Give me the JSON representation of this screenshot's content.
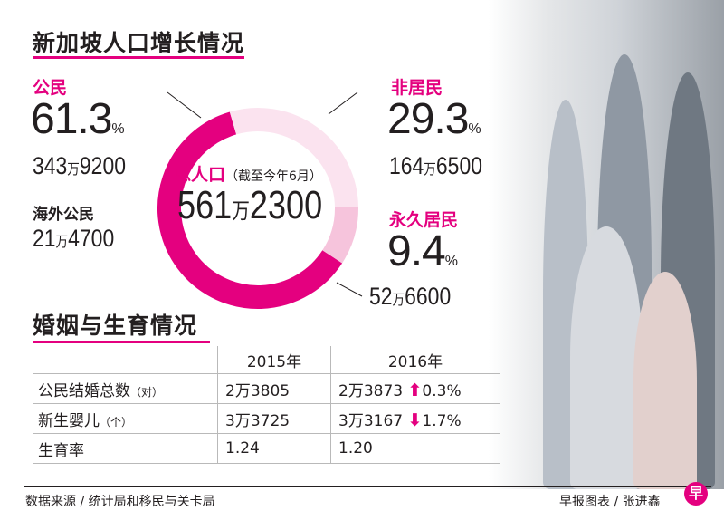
{
  "title": "新加坡人口增长情况",
  "citizens": {
    "label": "公民",
    "pct": "61.3",
    "pct_unit": "%",
    "count_a": "343",
    "count_unit": "万",
    "count_b": "9200"
  },
  "overseas": {
    "label": "海外公民",
    "count_a": "21",
    "count_unit": "万",
    "count_b": "4700"
  },
  "nonres": {
    "label": "非居民",
    "pct": "29.3",
    "pct_unit": "%",
    "count_a": "164",
    "count_unit": "万",
    "count_b": "6500"
  },
  "pr": {
    "label": "永久居民",
    "pct": "9.4",
    "pct_unit": "%",
    "count_a": "52",
    "count_unit": "万",
    "count_b": "6600"
  },
  "total": {
    "label": "总人口",
    "note": "（截至今年6月）",
    "a": "561",
    "unit": "万",
    "b": "2300"
  },
  "chart_data": {
    "type": "pie",
    "title": "新加坡人口增长情况",
    "categories": [
      "公民",
      "非居民",
      "永久居民"
    ],
    "values": [
      61.3,
      29.3,
      9.4
    ],
    "colors": [
      "#e4007f",
      "#fbe3ef",
      "#f6c4dc"
    ]
  },
  "section2": {
    "title": "婚姻与生育情况",
    "headers": [
      "",
      "2015年",
      "2016年"
    ],
    "rows": [
      {
        "label": "公民结婚总数",
        "label_unit": "（对）",
        "v2015": "2万3805",
        "v2016": "2万3873",
        "change_dir": "up",
        "change": "0.3%"
      },
      {
        "label": "新生婴儿",
        "label_unit": "（个）",
        "v2015": "3万3725",
        "v2016": "3万3167",
        "change_dir": "down",
        "change": "1.7%"
      },
      {
        "label": "生育率",
        "label_unit": "",
        "v2015": "1.24",
        "v2016": "1.20",
        "change_dir": "",
        "change": ""
      }
    ]
  },
  "footer": {
    "source": "数据来源 / 统计局和移民与关卡局",
    "credit": "早报图表 / 张进鑫",
    "logo": "早"
  }
}
